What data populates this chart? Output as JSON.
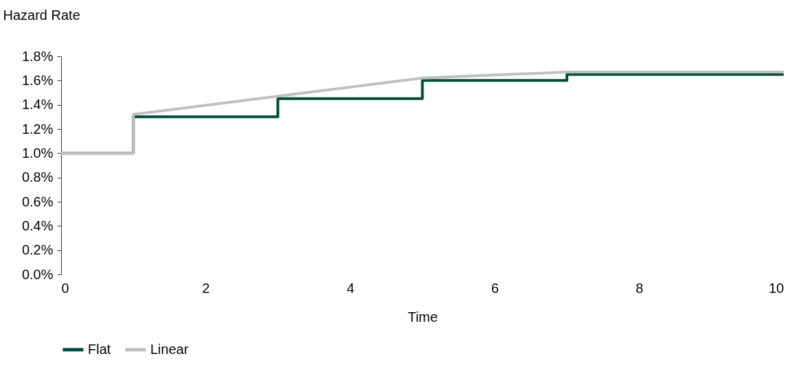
{
  "chart_data": {
    "type": "line",
    "ylabel": "Hazard Rate",
    "xlabel": "Time",
    "xlim": [
      0,
      10
    ],
    "xticks": [
      0,
      2,
      4,
      6,
      8,
      10
    ],
    "ylim": [
      0,
      1.8
    ],
    "yticks": [
      {
        "value": 0,
        "label": "0.0%"
      },
      {
        "value": 0.2,
        "label": "0.2%"
      },
      {
        "value": 0.4,
        "label": "0.4%"
      },
      {
        "value": 0.6,
        "label": "0.6%"
      },
      {
        "value": 0.8,
        "label": "0.8%"
      },
      {
        "value": 1.0,
        "label": "1.0%"
      },
      {
        "value": 1.2,
        "label": "1.2%"
      },
      {
        "value": 1.4,
        "label": "1.4%"
      },
      {
        "value": 1.6,
        "label": "1.6%"
      },
      {
        "value": 1.8,
        "label": "1.8%"
      }
    ],
    "grid": false,
    "legend": "bottom",
    "marker": "none",
    "line_style": "solid",
    "series": [
      {
        "name": "Flat",
        "type": "step",
        "color": "#004d3a",
        "x": [
          0,
          1,
          3,
          5,
          7,
          10
        ],
        "values": [
          1.0,
          1.3,
          1.45,
          1.6,
          1.65,
          1.65
        ]
      },
      {
        "name": "Linear",
        "type": "line",
        "color": "#c0c0c0",
        "x": [
          0,
          1,
          1,
          3,
          5,
          7,
          10
        ],
        "values": [
          1.0,
          1.0,
          1.32,
          1.47,
          1.62,
          1.67,
          1.67
        ]
      }
    ]
  }
}
